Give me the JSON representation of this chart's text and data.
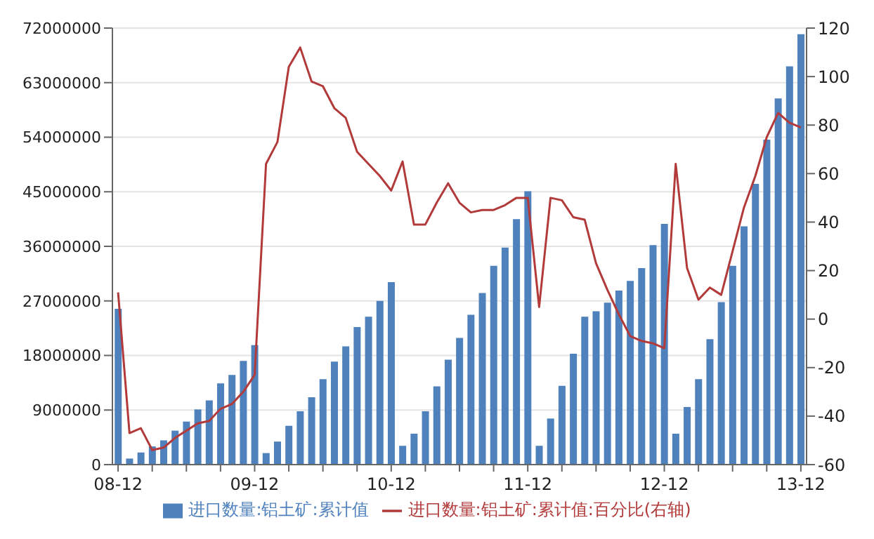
{
  "chart_data": {
    "type": "bar",
    "categories": [
      "08-12",
      null,
      null,
      null,
      null,
      null,
      null,
      null,
      null,
      null,
      null,
      null,
      "09-12",
      null,
      null,
      null,
      null,
      null,
      null,
      null,
      null,
      null,
      null,
      null,
      "10-12",
      null,
      null,
      null,
      null,
      null,
      null,
      null,
      null,
      null,
      null,
      null,
      "11-12",
      null,
      null,
      null,
      null,
      null,
      null,
      null,
      null,
      null,
      null,
      null,
      "12-12",
      null,
      null,
      null,
      null,
      null,
      null,
      null,
      null,
      null,
      null,
      null,
      "13-12"
    ],
    "series": [
      {
        "name": "进口数量:铝土矿:累计值",
        "color": "#4f81bd",
        "values": [
          25700000,
          1000000,
          2000000,
          3000000,
          4000000,
          5600000,
          7100000,
          9100000,
          10600000,
          13400000,
          14800000,
          17100000,
          19700000,
          1900000,
          3800000,
          6400000,
          8800000,
          11100000,
          14100000,
          17000000,
          19500000,
          22700000,
          24400000,
          27000000,
          30100000,
          3100000,
          5100000,
          8800000,
          12900000,
          17300000,
          20900000,
          24700000,
          28300000,
          32800000,
          35800000,
          40500000,
          45100000,
          3100000,
          7600000,
          13000000,
          18300000,
          24400000,
          25300000,
          26700000,
          28700000,
          30300000,
          32400000,
          36200000,
          39700000,
          5100000,
          9500000,
          14100000,
          20700000,
          26800000,
          32800000,
          39300000,
          46300000,
          53600000,
          60400000,
          65700000,
          71000000
        ]
      },
      {
        "name": "进口数量:铝土矿:累计值:百分比(右轴)",
        "type": "line",
        "axis": "y2",
        "color": "#b23a3a",
        "values": [
          11,
          -47,
          -45,
          -54,
          -53,
          -49,
          -46,
          -43,
          -42,
          -37,
          -35,
          -30,
          -23,
          64,
          73,
          104,
          112,
          98,
          96,
          87,
          83,
          69,
          64,
          59,
          53,
          65,
          39,
          39,
          48,
          56,
          48,
          44,
          45,
          45,
          47,
          50,
          50,
          5,
          50,
          49,
          42,
          41,
          23,
          12,
          2,
          -7,
          -9,
          -10,
          -12,
          64,
          21,
          8,
          13,
          10,
          28,
          46,
          59,
          75,
          85,
          81,
          79
        ]
      }
    ],
    "ylim": [
      0,
      72000000
    ],
    "yticks": [
      0,
      9000000,
      18000000,
      27000000,
      36000000,
      45000000,
      54000000,
      63000000,
      72000000
    ],
    "y2lim": [
      -60,
      120
    ],
    "y2ticks": [
      -60,
      -40,
      -20,
      0,
      20,
      40,
      60,
      80,
      100,
      120
    ],
    "grid": "y",
    "legend": "bottom",
    "marker": "none",
    "line_style": "solid"
  }
}
